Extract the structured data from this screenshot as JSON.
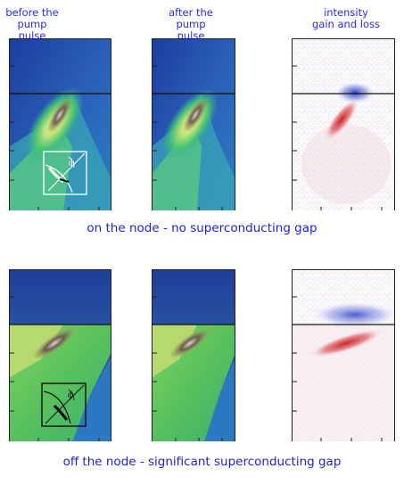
{
  "column_labels": {
    "before": "before the\npump pulse",
    "after": "after the\npump pulse",
    "intensity": "intensity\ngain and loss"
  },
  "captions": {
    "top": "on the node - no superconducting gap",
    "bottom": "off the node - significant superconducting gap"
  },
  "inset_symbol": "ϕ",
  "colors": {
    "label_blue": "#2a2ae0",
    "map_dark_blue": "#1d3f9c",
    "map_green": "#3fbf63",
    "map_yellow": "#dce873",
    "band_dark": "#5a4f46",
    "gain_red": "#d0242a",
    "loss_blue": "#3d4fd0"
  }
}
